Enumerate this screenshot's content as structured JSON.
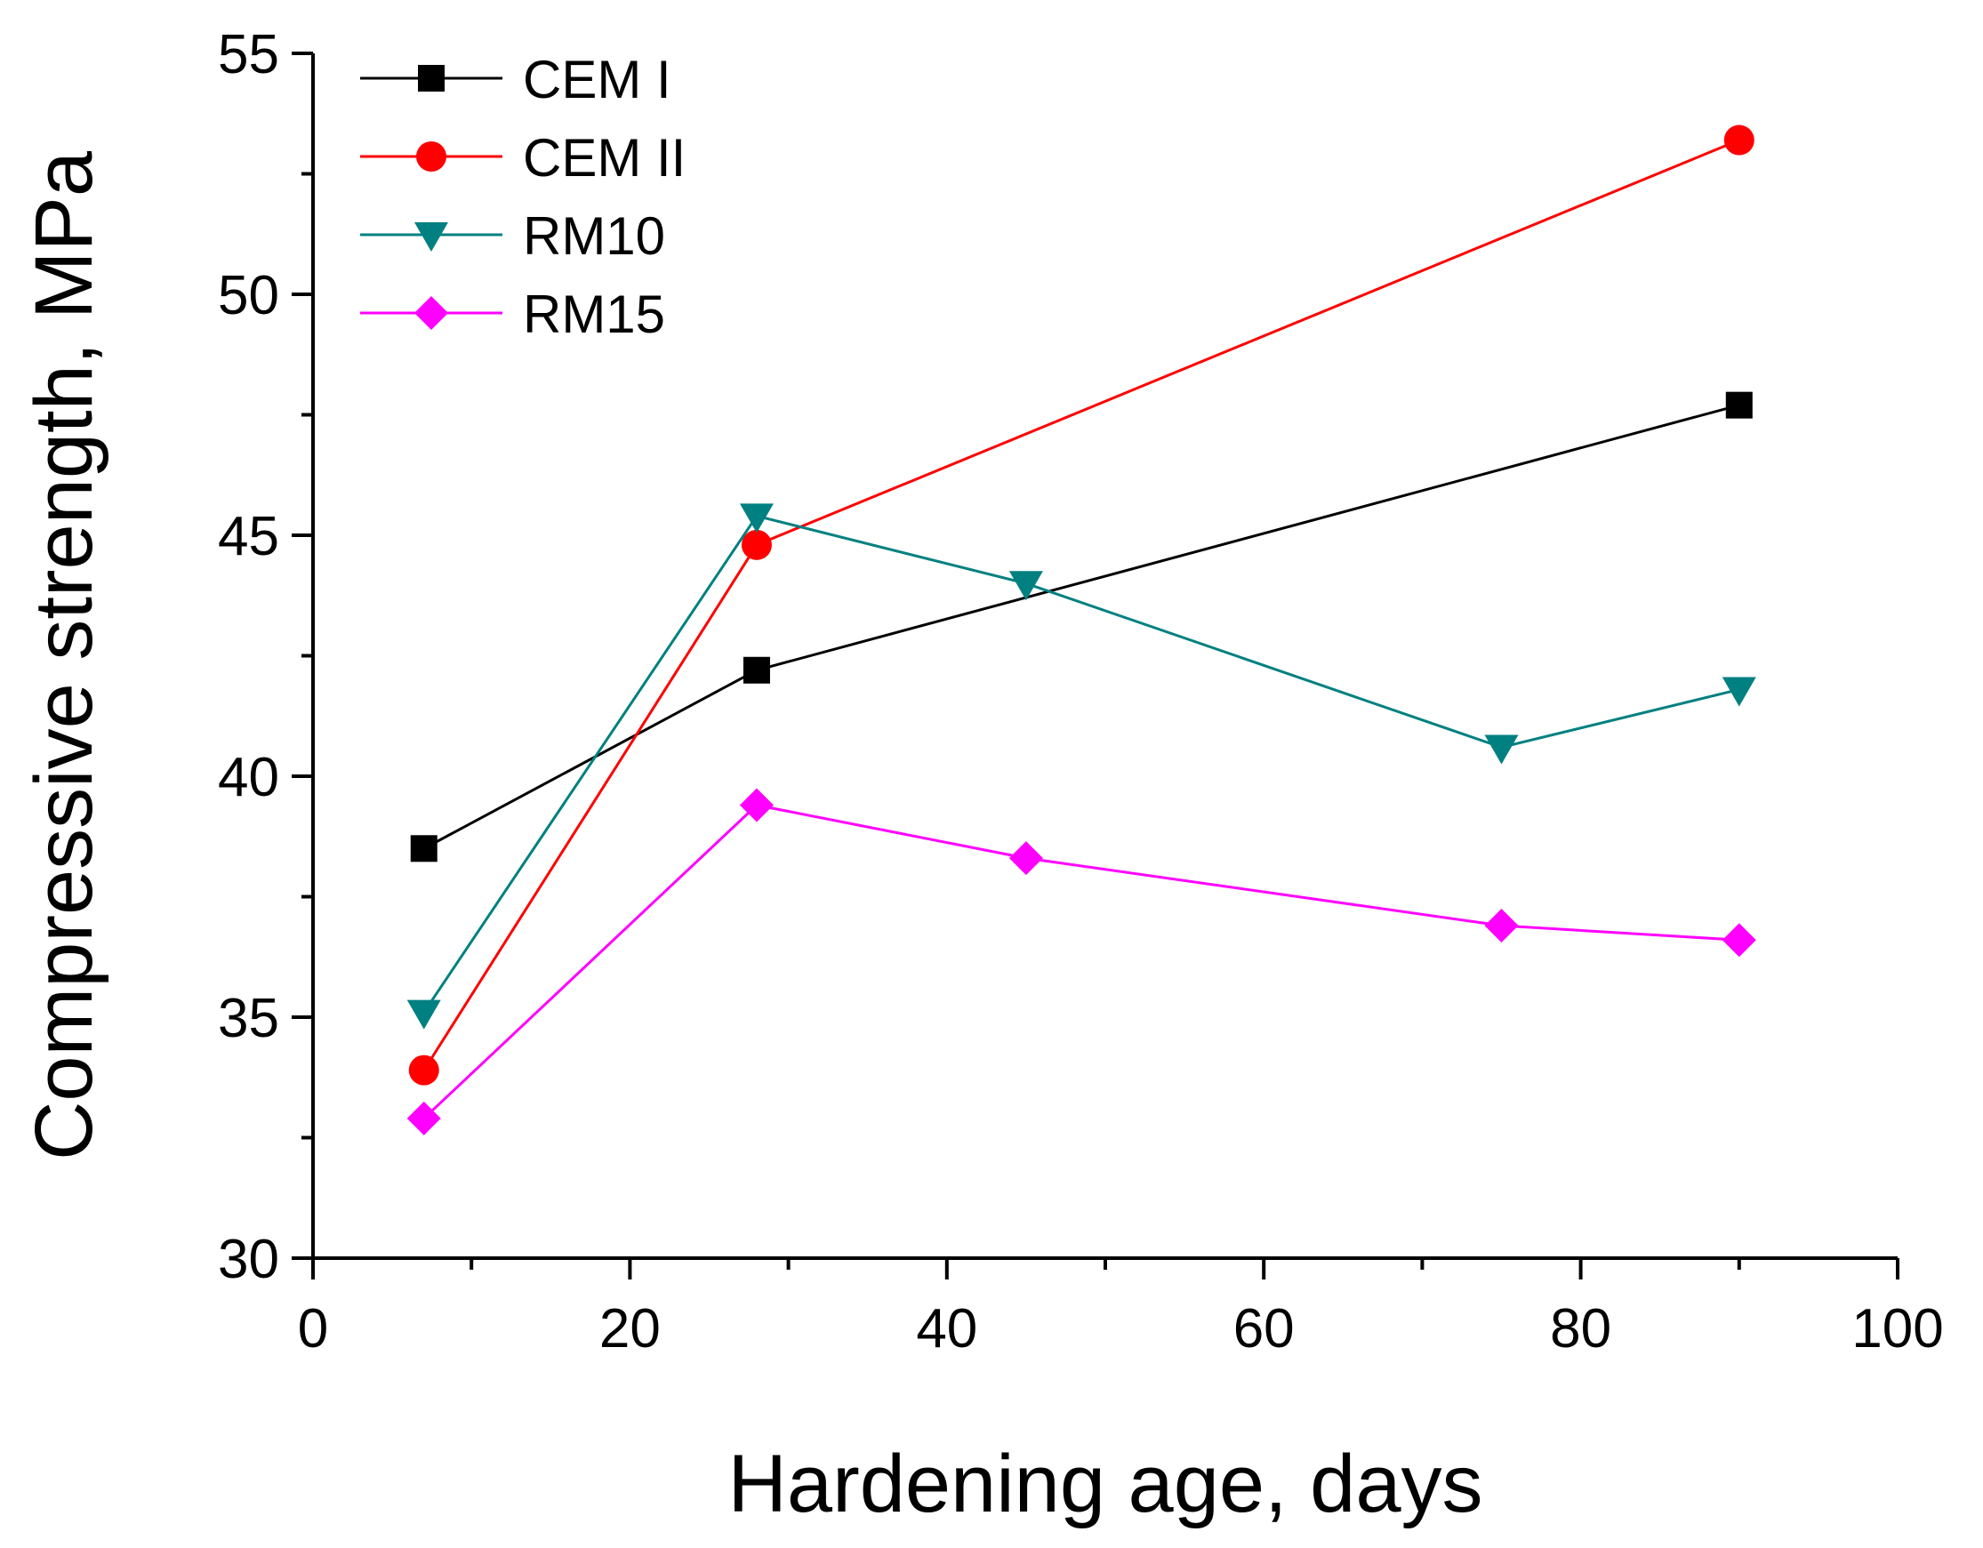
{
  "chart_data": {
    "type": "line",
    "title": "",
    "xlabel": "Hardening age, days",
    "ylabel": "Compressive strength, MPa",
    "xlim": [
      0,
      100
    ],
    "ylim": [
      30,
      55
    ],
    "x_major_ticks": [
      0,
      20,
      40,
      60,
      80,
      100
    ],
    "x_minor_ticks": [
      10,
      30,
      50,
      70,
      90
    ],
    "y_major_ticks": [
      30,
      35,
      40,
      45,
      50,
      55
    ],
    "y_minor_ticks": [
      32.5,
      37.5,
      42.5,
      47.5,
      52.5
    ],
    "grid": false,
    "legend_position": "top-left",
    "series": [
      {
        "name": "CEM I",
        "color": "#000000",
        "marker": "square",
        "x": [
          7,
          28,
          90
        ],
        "y": [
          38.5,
          42.2,
          47.7
        ]
      },
      {
        "name": "CEM II",
        "color": "#ff0000",
        "marker": "circle",
        "x": [
          7,
          28,
          90
        ],
        "y": [
          33.9,
          44.8,
          53.2
        ]
      },
      {
        "name": "RM10",
        "color": "#008080",
        "marker": "triangle-down",
        "x": [
          7,
          28,
          45,
          75,
          90
        ],
        "y": [
          35.1,
          45.4,
          44.0,
          40.6,
          41.8
        ]
      },
      {
        "name": "RM15",
        "color": "#ff00ff",
        "marker": "diamond",
        "x": [
          7,
          28,
          45,
          75,
          90
        ],
        "y": [
          32.9,
          39.4,
          38.3,
          36.9,
          36.6
        ]
      }
    ]
  }
}
